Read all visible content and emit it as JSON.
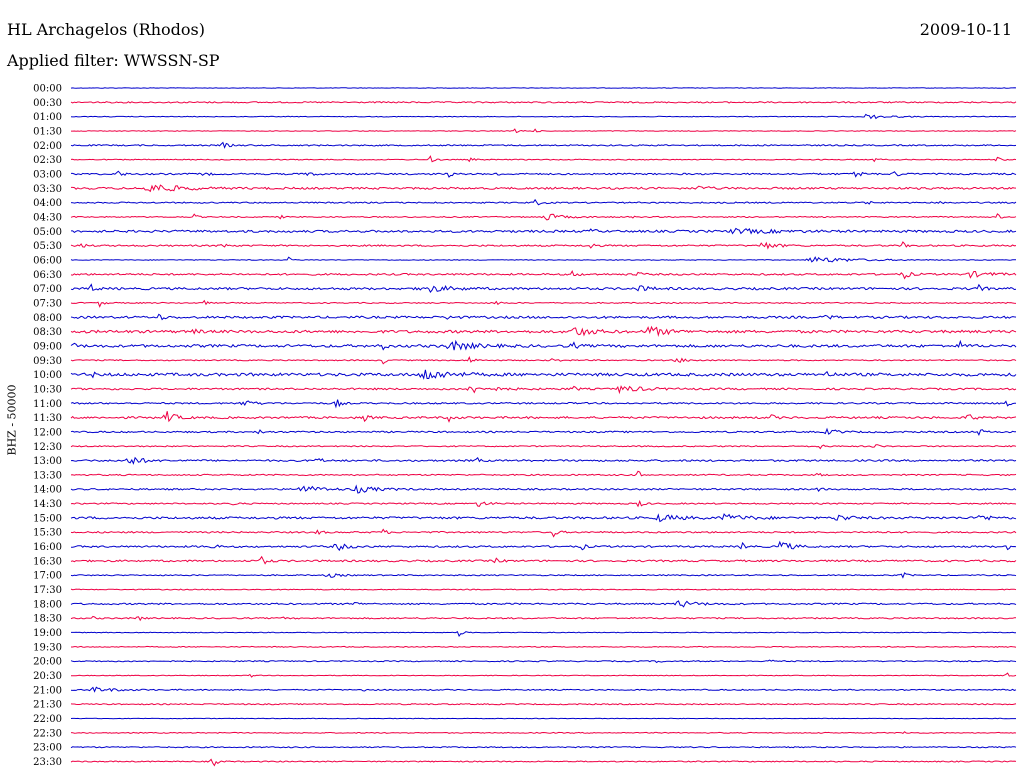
{
  "header": {
    "station": "HL Archagelos (Rhodos)",
    "date": "2009-10-11",
    "filter": "Applied filter: WWSSN-SP"
  },
  "chart_data": {
    "type": "line",
    "title": "HL Archagelos (Rhodos)",
    "subtitle": "Applied filter: WWSSN-SP",
    "ylabel": "BHZ - 50000",
    "xlabel": "",
    "grid": false,
    "row_colors": [
      "#0000cc",
      "#ee0044"
    ],
    "rows": [
      {
        "label": "00:00",
        "level": 0.2,
        "events": []
      },
      {
        "label": "00:30",
        "level": 0.6,
        "events": []
      },
      {
        "label": "01:00",
        "level": 0.3,
        "events": [
          [
            0.84,
            0.4,
            0.02
          ]
        ]
      },
      {
        "label": "01:30",
        "level": 0.3,
        "events": [
          [
            0.47,
            0.8,
            0.004
          ],
          [
            0.49,
            0.4,
            0.003
          ]
        ]
      },
      {
        "label": "02:00",
        "level": 0.6,
        "events": [
          [
            0.16,
            0.5,
            0.005
          ]
        ]
      },
      {
        "label": "02:30",
        "level": 0.4,
        "events": [
          [
            0.38,
            0.5,
            0.004
          ],
          [
            0.42,
            0.3,
            0.005
          ],
          [
            0.85,
            0.3,
            0.004
          ],
          [
            0.98,
            0.4,
            0.003
          ]
        ]
      },
      {
        "label": "03:00",
        "level": 0.7,
        "events": [
          [
            0.05,
            0.5,
            0.004
          ],
          [
            0.14,
            0.4,
            0.004
          ],
          [
            0.25,
            0.4,
            0.005
          ],
          [
            0.4,
            0.4,
            0.003
          ],
          [
            0.45,
            0.3,
            0.003
          ],
          [
            0.83,
            0.6,
            0.005
          ],
          [
            0.87,
            0.6,
            0.005
          ]
        ]
      },
      {
        "label": "03:30",
        "level": 0.9,
        "events": [
          [
            0.08,
            0.8,
            0.025
          ],
          [
            0.66,
            0.4,
            0.01
          ]
        ]
      },
      {
        "label": "04:00",
        "level": 0.6,
        "events": [
          [
            0.49,
            0.5,
            0.006
          ],
          [
            0.84,
            0.4,
            0.004
          ],
          [
            0.92,
            0.4,
            0.004
          ]
        ]
      },
      {
        "label": "04:30",
        "level": 0.5,
        "events": [
          [
            0.13,
            0.4,
            0.003
          ],
          [
            0.22,
            0.4,
            0.003
          ],
          [
            0.5,
            0.6,
            0.015
          ],
          [
            0.59,
            0.4,
            0.003
          ],
          [
            0.98,
            0.5,
            0.003
          ]
        ]
      },
      {
        "label": "05:00",
        "level": 1.0,
        "events": [
          [
            0.55,
            0.6,
            0.003
          ],
          [
            0.7,
            0.3,
            0.04
          ]
        ]
      },
      {
        "label": "05:30",
        "level": 0.7,
        "events": [
          [
            0.01,
            0.6,
            0.004
          ],
          [
            0.16,
            0.4,
            0.004
          ],
          [
            0.55,
            0.5,
            0.004
          ],
          [
            0.73,
            0.6,
            0.012
          ],
          [
            0.88,
            0.5,
            0.003
          ]
        ]
      },
      {
        "label": "06:00",
        "level": 0.3,
        "events": [
          [
            0.23,
            0.4,
            0.003
          ],
          [
            0.78,
            0.5,
            0.04
          ]
        ]
      },
      {
        "label": "06:30",
        "level": 0.8,
        "events": [
          [
            0.53,
            0.6,
            0.004
          ],
          [
            0.6,
            0.4,
            0.003
          ],
          [
            0.88,
            0.7,
            0.006
          ],
          [
            0.95,
            0.4,
            0.02
          ]
        ]
      },
      {
        "label": "07:00",
        "level": 1.0,
        "events": [
          [
            0.02,
            0.7,
            0.004
          ],
          [
            0.37,
            0.7,
            0.02
          ],
          [
            0.6,
            0.4,
            0.01
          ],
          [
            0.96,
            0.5,
            0.004
          ]
        ]
      },
      {
        "label": "07:30",
        "level": 0.5,
        "events": [
          [
            0.03,
            0.5,
            0.004
          ],
          [
            0.14,
            0.4,
            0.003
          ],
          [
            0.45,
            0.3,
            0.004
          ]
        ]
      },
      {
        "label": "08:00",
        "level": 1.0,
        "events": [
          [
            0.09,
            0.7,
            0.005
          ],
          [
            0.4,
            0.5,
            0.004
          ],
          [
            0.8,
            0.5,
            0.004
          ]
        ]
      },
      {
        "label": "08:30",
        "level": 1.2,
        "events": [
          [
            0.13,
            0.4,
            0.004
          ],
          [
            0.53,
            0.8,
            0.015
          ],
          [
            0.61,
            0.8,
            0.015
          ]
        ]
      },
      {
        "label": "09:00",
        "level": 1.2,
        "events": [
          [
            0.0,
            0.8,
            0.003
          ],
          [
            0.33,
            0.6,
            0.003
          ],
          [
            0.4,
            0.7,
            0.02
          ],
          [
            0.53,
            0.6,
            0.004
          ],
          [
            0.94,
            0.7,
            0.004
          ]
        ]
      },
      {
        "label": "09:30",
        "level": 0.5,
        "events": [
          [
            0.33,
            0.5,
            0.003
          ],
          [
            0.42,
            0.8,
            0.004
          ],
          [
            0.51,
            0.5,
            0.004
          ],
          [
            0.64,
            0.4,
            0.01
          ]
        ]
      },
      {
        "label": "10:00",
        "level": 1.3,
        "events": [
          [
            0.37,
            1.0,
            0.02
          ],
          [
            0.02,
            0.5,
            0.004
          ],
          [
            0.8,
            0.4,
            0.004
          ]
        ]
      },
      {
        "label": "10:30",
        "level": 0.8,
        "events": [
          [
            0.42,
            0.6,
            0.02
          ],
          [
            0.53,
            0.5,
            0.004
          ],
          [
            0.58,
            0.5,
            0.02
          ]
        ]
      },
      {
        "label": "11:00",
        "level": 0.7,
        "events": [
          [
            0.18,
            0.5,
            0.01
          ],
          [
            0.28,
            0.8,
            0.004
          ],
          [
            0.99,
            0.6,
            0.003
          ]
        ]
      },
      {
        "label": "11:30",
        "level": 0.9,
        "events": [
          [
            0.1,
            1.0,
            0.008
          ],
          [
            0.31,
            0.5,
            0.004
          ],
          [
            0.4,
            0.5,
            0.004
          ],
          [
            0.74,
            0.4,
            0.005
          ],
          [
            0.95,
            0.7,
            0.004
          ]
        ]
      },
      {
        "label": "12:00",
        "level": 0.7,
        "events": [
          [
            0.2,
            0.4,
            0.004
          ],
          [
            0.8,
            0.4,
            0.01
          ],
          [
            0.96,
            0.6,
            0.004
          ]
        ]
      },
      {
        "label": "12:30",
        "level": 0.5,
        "events": [
          [
            0.79,
            0.6,
            0.004
          ],
          [
            0.85,
            0.4,
            0.004
          ]
        ]
      },
      {
        "label": "13:00",
        "level": 0.8,
        "events": [
          [
            0.06,
            0.9,
            0.01
          ],
          [
            0.26,
            0.6,
            0.004
          ],
          [
            0.43,
            0.4,
            0.003
          ]
        ]
      },
      {
        "label": "13:30",
        "level": 0.6,
        "events": [
          [
            0.6,
            0.6,
            0.003
          ],
          [
            0.79,
            0.4,
            0.003
          ]
        ]
      },
      {
        "label": "14:00",
        "level": 0.7,
        "events": [
          [
            0.24,
            0.6,
            0.02
          ],
          [
            0.3,
            0.5,
            0.02
          ],
          [
            0.79,
            0.4,
            0.003
          ]
        ]
      },
      {
        "label": "14:30",
        "level": 0.6,
        "events": [
          [
            0.17,
            0.4,
            0.003
          ],
          [
            0.43,
            0.4,
            0.01
          ],
          [
            0.6,
            0.6,
            0.004
          ]
        ]
      },
      {
        "label": "15:00",
        "level": 1.0,
        "events": [
          [
            0.62,
            0.5,
            0.02
          ],
          [
            0.69,
            0.5,
            0.02
          ],
          [
            0.81,
            0.6,
            0.01
          ],
          [
            0.96,
            0.5,
            0.01
          ]
        ]
      },
      {
        "label": "15:30",
        "level": 0.7,
        "events": [
          [
            0.26,
            0.4,
            0.004
          ],
          [
            0.33,
            0.4,
            0.004
          ],
          [
            0.51,
            0.7,
            0.004
          ],
          [
            0.85,
            0.4,
            0.004
          ]
        ]
      },
      {
        "label": "16:00",
        "level": 0.8,
        "events": [
          [
            0.15,
            0.5,
            0.003
          ],
          [
            0.28,
            0.6,
            0.01
          ],
          [
            0.54,
            0.5,
            0.004
          ],
          [
            0.71,
            0.6,
            0.004
          ],
          [
            0.75,
            0.9,
            0.01
          ],
          [
            0.99,
            0.5,
            0.003
          ]
        ]
      },
      {
        "label": "16:30",
        "level": 0.8,
        "events": [
          [
            0.2,
            0.8,
            0.005
          ],
          [
            0.45,
            0.4,
            0.004
          ]
        ]
      },
      {
        "label": "17:00",
        "level": 0.5,
        "events": [
          [
            0.27,
            0.4,
            0.01
          ],
          [
            0.88,
            0.4,
            0.005
          ]
        ]
      },
      {
        "label": "17:30",
        "level": 0.4,
        "events": []
      },
      {
        "label": "18:00",
        "level": 0.7,
        "events": [
          [
            0.64,
            0.6,
            0.015
          ],
          [
            0.3,
            0.3,
            0.004
          ]
        ]
      },
      {
        "label": "18:30",
        "level": 0.6,
        "events": [
          [
            0.02,
            0.4,
            0.004
          ],
          [
            0.07,
            0.6,
            0.003
          ],
          [
            0.22,
            0.4,
            0.003
          ]
        ]
      },
      {
        "label": "19:00",
        "level": 0.3,
        "events": [
          [
            0.41,
            0.6,
            0.004
          ]
        ]
      },
      {
        "label": "19:30",
        "level": 0.4,
        "events": []
      },
      {
        "label": "20:00",
        "level": 0.5,
        "events": [
          [
            0.62,
            0.4,
            0.003
          ],
          [
            0.74,
            0.4,
            0.003
          ]
        ]
      },
      {
        "label": "20:30",
        "level": 0.3,
        "events": [
          [
            0.19,
            0.4,
            0.003
          ],
          [
            0.99,
            0.6,
            0.003
          ]
        ]
      },
      {
        "label": "21:00",
        "level": 0.5,
        "events": [
          [
            0.02,
            0.4,
            0.02
          ],
          [
            0.31,
            0.5,
            0.003
          ]
        ]
      },
      {
        "label": "21:30",
        "level": 0.5,
        "events": []
      },
      {
        "label": "22:00",
        "level": 0.2,
        "events": []
      },
      {
        "label": "22:30",
        "level": 0.4,
        "events": [
          [
            0.88,
            0.3,
            0.004
          ]
        ]
      },
      {
        "label": "23:00",
        "level": 0.5,
        "events": []
      },
      {
        "label": "23:30",
        "level": 0.5,
        "events": [
          [
            0.15,
            0.8,
            0.004
          ]
        ]
      }
    ]
  }
}
